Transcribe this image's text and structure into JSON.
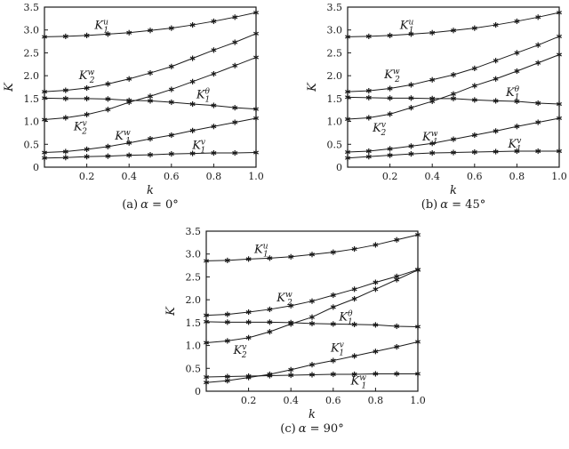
{
  "figure": {
    "background": "#ffffff",
    "ink": "#1a1a1a"
  },
  "chart_data": [
    {
      "id": "a",
      "type": "line",
      "caption": {
        "index": "(a)",
        "symbol": "α",
        "rest": "= 0°"
      },
      "xlabel": "k",
      "ylabel": "K",
      "xlim": [
        0,
        1.0
      ],
      "ylim": [
        0,
        3.5
      ],
      "xticks": [
        0.2,
        0.4,
        0.6,
        0.8,
        1.0
      ],
      "xtick_labels": [
        "0.2",
        "0.4",
        "0.6",
        "0.8",
        "1.0"
      ],
      "yticks": [
        0,
        0.5,
        1.0,
        1.5,
        2.0,
        2.5,
        3.0,
        3.5
      ],
      "ytick_labels": [
        "0",
        "0.5",
        "1.0",
        "1.5",
        "2.0",
        "2.5",
        "3.0",
        "3.5"
      ],
      "marker": "asterisk",
      "grid": false,
      "x": [
        0,
        0.1,
        0.2,
        0.3,
        0.4,
        0.5,
        0.6,
        0.7,
        0.8,
        0.9,
        1.0
      ],
      "series": [
        {
          "name": "K1u",
          "label": {
            "base": "K",
            "sub": "1",
            "sup": "u"
          },
          "label_pos": [
            0.27,
            3.1
          ],
          "values": [
            2.85,
            2.86,
            2.88,
            2.91,
            2.94,
            2.99,
            3.04,
            3.11,
            3.19,
            3.28,
            3.38
          ]
        },
        {
          "name": "K2w",
          "label": {
            "base": "K",
            "sub": "2",
            "sup": "w"
          },
          "label_pos": [
            0.2,
            2.0
          ],
          "values": [
            1.65,
            1.68,
            1.73,
            1.82,
            1.93,
            2.06,
            2.2,
            2.38,
            2.56,
            2.73,
            2.92
          ]
        },
        {
          "name": "K2v",
          "label": {
            "base": "K",
            "sub": "2",
            "sup": "v"
          },
          "label_pos": [
            0.17,
            0.88
          ],
          "values": [
            1.04,
            1.08,
            1.15,
            1.26,
            1.42,
            1.55,
            1.7,
            1.87,
            2.04,
            2.22,
            2.4
          ]
        },
        {
          "name": "K1theta",
          "label": {
            "base": "K",
            "sub": "1",
            "sup": "θ"
          },
          "label_pos": [
            0.75,
            1.58
          ],
          "values": [
            1.51,
            1.5,
            1.5,
            1.49,
            1.46,
            1.45,
            1.42,
            1.38,
            1.35,
            1.3,
            1.27
          ]
        },
        {
          "name": "K1w",
          "label": {
            "base": "K",
            "sub": "1",
            "sup": "w"
          },
          "label_pos": [
            0.37,
            0.68
          ],
          "values": [
            0.32,
            0.34,
            0.39,
            0.45,
            0.53,
            0.62,
            0.7,
            0.8,
            0.89,
            0.98,
            1.07
          ]
        },
        {
          "name": "K1v",
          "label": {
            "base": "K",
            "sub": "1",
            "sup": "v"
          },
          "label_pos": [
            0.73,
            0.48
          ],
          "values": [
            0.2,
            0.21,
            0.23,
            0.24,
            0.26,
            0.27,
            0.29,
            0.3,
            0.31,
            0.31,
            0.32
          ]
        }
      ]
    },
    {
      "id": "b",
      "type": "line",
      "caption": {
        "index": "(b)",
        "symbol": "α",
        "rest": "= 45°"
      },
      "xlabel": "k",
      "ylabel": "K",
      "xlim": [
        0,
        1.0
      ],
      "ylim": [
        0,
        3.5
      ],
      "xticks": [
        0.2,
        0.4,
        0.6,
        0.8,
        1.0
      ],
      "xtick_labels": [
        "0.2",
        "0.4",
        "0.6",
        "0.8",
        "1.0"
      ],
      "yticks": [
        0,
        0.5,
        1.0,
        1.5,
        2.0,
        2.5,
        3.0,
        3.5
      ],
      "ytick_labels": [
        "0",
        "0.5",
        "1.0",
        "1.5",
        "2.0",
        "2.5",
        "3.0",
        "3.5"
      ],
      "marker": "asterisk",
      "grid": false,
      "x": [
        0,
        0.1,
        0.2,
        0.3,
        0.4,
        0.5,
        0.6,
        0.7,
        0.8,
        0.9,
        1.0
      ],
      "series": [
        {
          "name": "K1u",
          "label": {
            "base": "K",
            "sub": "1",
            "sup": "u"
          },
          "label_pos": [
            0.28,
            3.1
          ],
          "values": [
            2.85,
            2.86,
            2.88,
            2.91,
            2.94,
            2.99,
            3.04,
            3.11,
            3.19,
            3.28,
            3.38
          ]
        },
        {
          "name": "K2w",
          "label": {
            "base": "K",
            "sub": "2",
            "sup": "w"
          },
          "label_pos": [
            0.21,
            2.02
          ],
          "values": [
            1.65,
            1.67,
            1.72,
            1.8,
            1.91,
            2.02,
            2.16,
            2.33,
            2.5,
            2.67,
            2.86
          ]
        },
        {
          "name": "K2v",
          "label": {
            "base": "K",
            "sub": "2",
            "sup": "v"
          },
          "label_pos": [
            0.15,
            0.86
          ],
          "values": [
            1.05,
            1.08,
            1.16,
            1.3,
            1.44,
            1.6,
            1.78,
            1.93,
            2.1,
            2.28,
            2.46
          ]
        },
        {
          "name": "K1theta",
          "label": {
            "base": "K",
            "sub": "1",
            "sup": "θ"
          },
          "label_pos": [
            0.78,
            1.63
          ],
          "values": [
            1.53,
            1.52,
            1.51,
            1.51,
            1.5,
            1.5,
            1.47,
            1.45,
            1.44,
            1.4,
            1.38
          ]
        },
        {
          "name": "K1w",
          "label": {
            "base": "K",
            "sub": "1",
            "sup": "w"
          },
          "label_pos": [
            0.39,
            0.66
          ],
          "values": [
            0.33,
            0.35,
            0.4,
            0.46,
            0.52,
            0.61,
            0.7,
            0.79,
            0.89,
            0.98,
            1.07
          ]
        },
        {
          "name": "K1v",
          "label": {
            "base": "K",
            "sub": "1",
            "sup": "v"
          },
          "label_pos": [
            0.79,
            0.51
          ],
          "values": [
            0.2,
            0.23,
            0.26,
            0.29,
            0.31,
            0.32,
            0.33,
            0.34,
            0.35,
            0.35,
            0.35
          ]
        }
      ]
    },
    {
      "id": "c",
      "type": "line",
      "caption": {
        "index": "(c)",
        "symbol": "α",
        "rest": "= 90°"
      },
      "xlabel": "k",
      "ylabel": "K",
      "xlim": [
        0,
        1.0
      ],
      "ylim": [
        0,
        3.5
      ],
      "xticks": [
        0.2,
        0.4,
        0.6,
        0.8,
        1.0
      ],
      "xtick_labels": [
        "0.2",
        "0.4",
        "0.6",
        "0.8",
        "1.0"
      ],
      "yticks": [
        0,
        0.5,
        1.0,
        1.5,
        2.0,
        2.5,
        3.0,
        3.5
      ],
      "ytick_labels": [
        "0",
        "0.5",
        "1.0",
        "1.5",
        "2.0",
        "2.5",
        "3.0",
        "3.5"
      ],
      "marker": "asterisk",
      "grid": false,
      "x": [
        0,
        0.1,
        0.2,
        0.3,
        0.4,
        0.5,
        0.6,
        0.7,
        0.8,
        0.9,
        1.0
      ],
      "series": [
        {
          "name": "K1u",
          "label": {
            "base": "K",
            "sub": "1",
            "sup": "u"
          },
          "label_pos": [
            0.26,
            3.1
          ],
          "values": [
            2.85,
            2.86,
            2.89,
            2.91,
            2.94,
            2.99,
            3.04,
            3.11,
            3.2,
            3.31,
            3.42
          ]
        },
        {
          "name": "K2w",
          "label": {
            "base": "K",
            "sub": "2",
            "sup": "w"
          },
          "label_pos": [
            0.37,
            2.04
          ],
          "values": [
            1.66,
            1.68,
            1.73,
            1.79,
            1.87,
            1.97,
            2.1,
            2.23,
            2.38,
            2.51,
            2.66
          ]
        },
        {
          "name": "K2v",
          "label": {
            "base": "K",
            "sub": "2",
            "sup": "v"
          },
          "label_pos": [
            0.16,
            0.89
          ],
          "values": [
            1.06,
            1.1,
            1.17,
            1.3,
            1.47,
            1.62,
            1.84,
            2.02,
            2.23,
            2.44,
            2.65
          ]
        },
        {
          "name": "K1theta",
          "label": {
            "base": "K",
            "sub": "1",
            "sup": "θ"
          },
          "label_pos": [
            0.66,
            1.62
          ],
          "values": [
            1.52,
            1.51,
            1.51,
            1.51,
            1.5,
            1.48,
            1.47,
            1.46,
            1.45,
            1.42,
            1.41
          ]
        },
        {
          "name": "K1v",
          "label": {
            "base": "K",
            "sub": "1",
            "sup": "v"
          },
          "label_pos": [
            0.62,
            0.94
          ],
          "values": [
            0.19,
            0.23,
            0.3,
            0.37,
            0.47,
            0.58,
            0.67,
            0.77,
            0.87,
            0.97,
            1.08
          ]
        },
        {
          "name": "K1w",
          "label": {
            "base": "K",
            "sub": "1",
            "sup": "w"
          },
          "label_pos": [
            0.72,
            0.22
          ],
          "values": [
            0.31,
            0.32,
            0.33,
            0.34,
            0.35,
            0.36,
            0.37,
            0.37,
            0.38,
            0.38,
            0.38
          ]
        }
      ]
    }
  ]
}
